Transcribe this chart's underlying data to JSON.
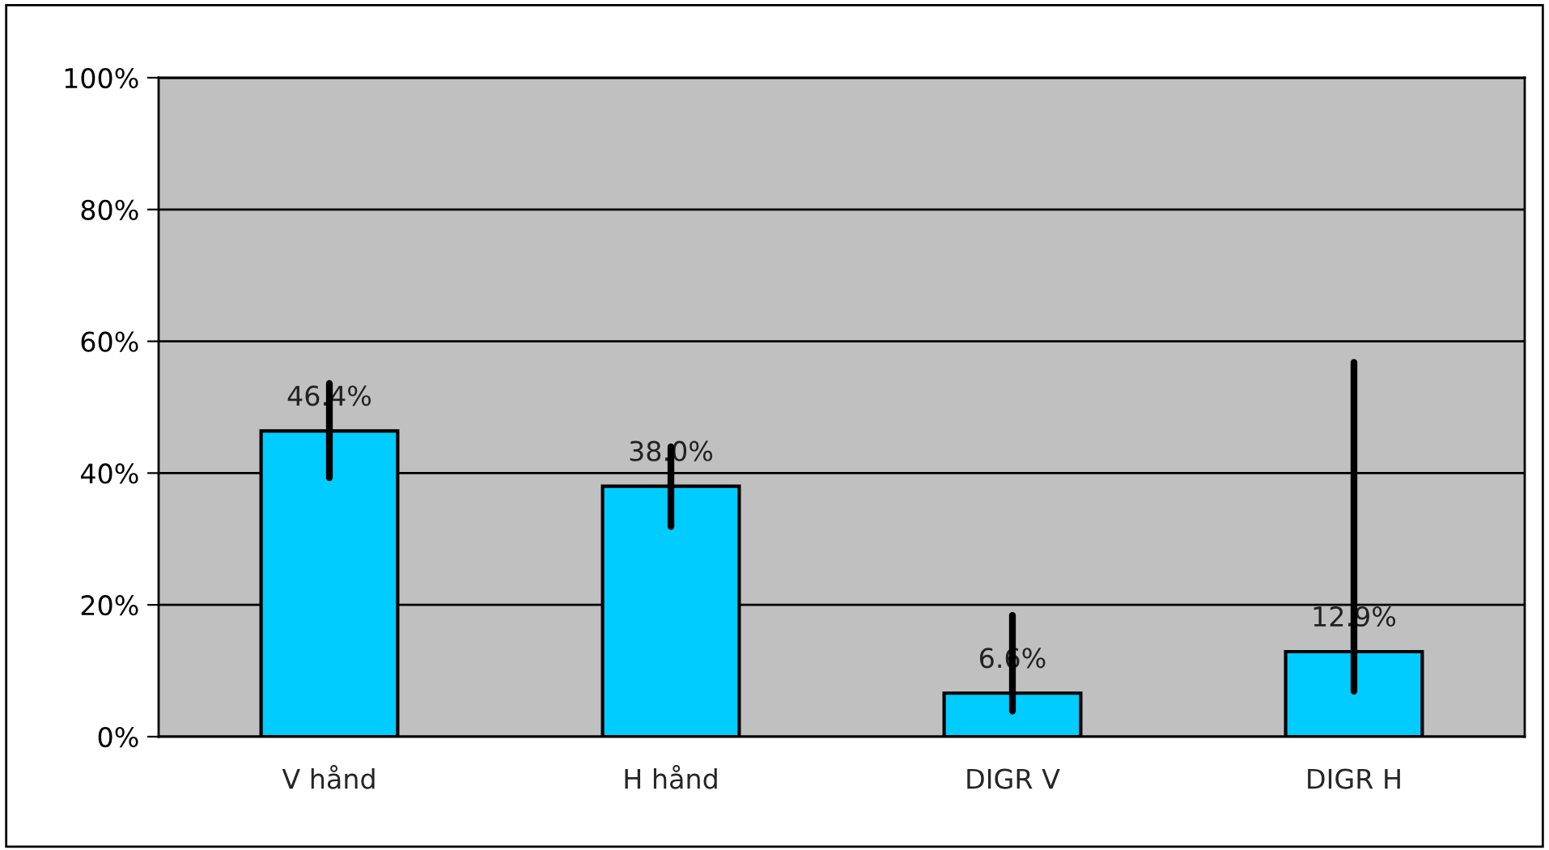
{
  "chart_data": {
    "type": "bar",
    "categories": [
      "V hånd",
      "H hånd",
      "DIGR V",
      "DIGR H"
    ],
    "values": [
      46.4,
      38.0,
      6.6,
      12.9
    ],
    "value_labels": [
      "46.4%",
      "38.0%",
      "6.6%",
      "12.9%"
    ],
    "errors": [
      [
        39.3,
        53.6
      ],
      [
        31.9,
        44.0
      ],
      [
        3.9,
        18.4
      ],
      [
        6.9,
        56.8
      ]
    ],
    "color": "#00ccff",
    "ylim": [
      0,
      100
    ],
    "yticks": [
      {
        "value": 0,
        "label": "0%"
      },
      {
        "value": 20,
        "label": "20%"
      },
      {
        "value": 40,
        "label": "40%"
      },
      {
        "value": 60,
        "label": "60%"
      },
      {
        "value": 80,
        "label": "80%"
      },
      {
        "value": 100,
        "label": "100%"
      }
    ],
    "grid": "y",
    "legend": false
  }
}
